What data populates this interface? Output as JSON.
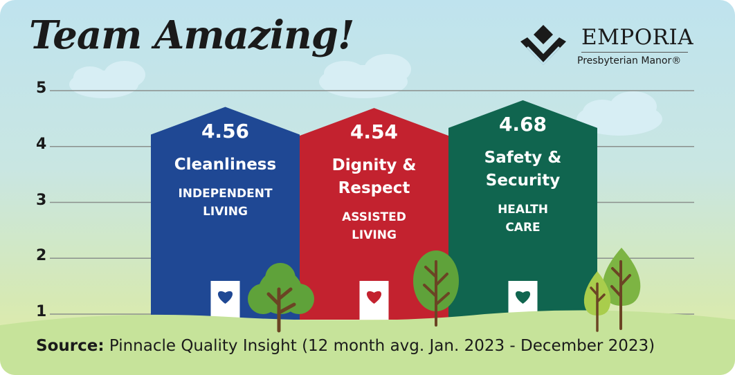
{
  "headline": "Team Amazing!",
  "logo": {
    "name": "EMPORIA",
    "subtitle": "Presbyterian Manor®",
    "icon": "chevron-diamond-logo-icon"
  },
  "source": {
    "label": "Source:",
    "text": "Pinnacle Quality Insight (12 month avg. Jan. 2023 - December 2023)"
  },
  "colors": {
    "independent_living": "#1f4894",
    "assisted_living": "#c3222f",
    "health_care": "#10654f",
    "heart_blue": "#1f4894",
    "heart_red": "#c3222f",
    "heart_green": "#10654f",
    "ground": "#c6e39a",
    "tree_foliage": "#5fa23a",
    "tree_trunk": "#6b4424",
    "cloud": "#d7eef4"
  },
  "chart_data": {
    "type": "bar",
    "title": "",
    "xlabel": "",
    "ylabel": "",
    "ylim": [
      1,
      5
    ],
    "yticks": [
      1,
      2,
      3,
      4,
      5
    ],
    "grid": true,
    "bar_shape": "house",
    "categories": [
      "Cleanliness",
      "Dignity & Respect",
      "Safety & Security"
    ],
    "category_lines": [
      [
        "Cleanliness"
      ],
      [
        "Dignity &",
        "Respect"
      ],
      [
        "Safety &",
        "Security"
      ]
    ],
    "sublabels": [
      "INDEPENDENT LIVING",
      "ASSISTED LIVING",
      "HEALTH CARE"
    ],
    "sublabel_lines": [
      [
        "INDEPENDENT",
        "LIVING"
      ],
      [
        "ASSISTED",
        "LIVING"
      ],
      [
        "HEALTH",
        "CARE"
      ]
    ],
    "values": [
      4.56,
      4.54,
      4.68
    ],
    "value_labels": [
      "4.56",
      "4.54",
      "4.68"
    ]
  }
}
